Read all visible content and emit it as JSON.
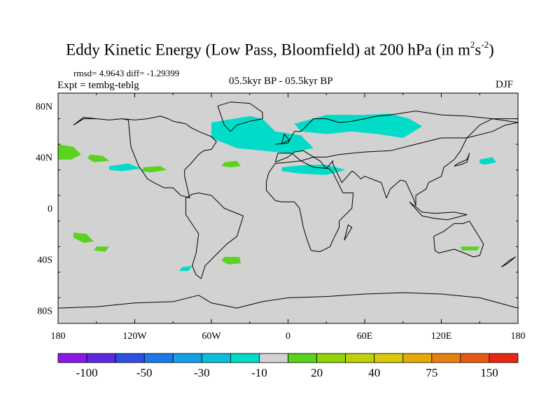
{
  "chart_data": {
    "type": "heatmap",
    "title_main": "Eddy Kinetic Energy (Low Pass, Bloomfield) at 200 hPa (in m",
    "title_sup1": "2",
    "title_mid": "s",
    "title_sup2": "-2",
    "title_end": ")",
    "stats": "rmsd= 4.9643 diff= -1.29399",
    "experiment": "Expt = tembg-teblg",
    "period": "05.5kyr BP - 05.5kyr BP",
    "season": "DJF",
    "x_ticks": [
      "180",
      "120W",
      "60W",
      "0",
      "60E",
      "120E",
      "180"
    ],
    "x_tick_values": [
      -180,
      -120,
      -60,
      0,
      60,
      120,
      180
    ],
    "y_ticks": [
      "80N",
      "40N",
      "0",
      "40S",
      "80S"
    ],
    "y_tick_values": [
      80,
      40,
      0,
      -40,
      -80
    ],
    "xlim": [
      -180,
      180
    ],
    "ylim": [
      -90,
      90
    ],
    "background_color": "#d2d2d2",
    "colorbar": {
      "colors": [
        "#8c18e6",
        "#5a28e0",
        "#2d50e1",
        "#1e78e6",
        "#14a0e6",
        "#0abedc",
        "#00dcc8",
        "#d2d2d2",
        "#5ad21e",
        "#96d20a",
        "#bed20a",
        "#dcc80a",
        "#e6aa0a",
        "#e68214",
        "#e65a14",
        "#e62814"
      ],
      "labels": [
        "-100",
        "-50",
        "-30",
        "-10",
        "20",
        "40",
        "75",
        "150"
      ],
      "label_after_box": [
        1,
        3,
        5,
        7,
        9,
        11,
        13,
        15
      ]
    },
    "anomaly_regions": [
      {
        "name": "north-atlantic-negative",
        "color": "#00dcc8",
        "lon": [
          -60,
          -30,
          -20,
          -10,
          10,
          20,
          0,
          -20,
          -40,
          -60
        ],
        "lat": [
          67,
          72,
          70,
          60,
          57,
          47,
          43,
          45,
          47,
          55
        ]
      },
      {
        "name": "eurasia-north-negative",
        "color": "#00dcc8",
        "lon": [
          5,
          30,
          60,
          80,
          95,
          105,
          90,
          70,
          50,
          30,
          10
        ],
        "lat": [
          66,
          73,
          73,
          74,
          70,
          64,
          55,
          58,
          60,
          58,
          60
        ]
      },
      {
        "name": "mediterranean-negative",
        "color": "#00dcc8",
        "lon": [
          -5,
          15,
          30,
          45,
          30,
          10,
          -5
        ],
        "lat": [
          32,
          34,
          34,
          30,
          26,
          27,
          29
        ]
      },
      {
        "name": "pacific-east-negative",
        "color": "#00dcc8",
        "lon": [
          -140,
          -125,
          -115,
          -130,
          -140
        ],
        "lat": [
          33,
          35,
          31,
          29,
          30
        ]
      },
      {
        "name": "pacific-west-negative",
        "color": "#00dcc8",
        "lon": [
          150,
          160,
          163,
          154,
          150
        ],
        "lat": [
          38,
          40,
          36,
          34,
          35
        ]
      },
      {
        "name": "south-atlantic-negative",
        "color": "#00dcc8",
        "lon": [
          -83,
          -75,
          -78,
          -85
        ],
        "lat": [
          -46,
          -45,
          -49,
          -49
        ]
      },
      {
        "name": "dateline-north-positive",
        "color": "#5ad21e",
        "lon": [
          -180,
          -168,
          -162,
          -170,
          -180
        ],
        "lat": [
          50,
          48,
          42,
          38,
          38
        ]
      },
      {
        "name": "central-pacific-positive",
        "color": "#5ad21e",
        "lon": [
          -155,
          -145,
          -140,
          -152,
          -157
        ],
        "lat": [
          42,
          41,
          37,
          36,
          39
        ]
      },
      {
        "name": "mexico-positive",
        "color": "#5ad21e",
        "lon": [
          -113,
          -100,
          -95,
          -107,
          -115
        ],
        "lat": [
          32,
          33,
          30,
          28,
          29
        ]
      },
      {
        "name": "atlantic-sub-positive",
        "color": "#5ad21e",
        "lon": [
          -50,
          -40,
          -37,
          -45,
          -52
        ],
        "lat": [
          36,
          37,
          33,
          32,
          33
        ]
      },
      {
        "name": "south-pacific-positive",
        "color": "#5ad21e",
        "lon": [
          -168,
          -158,
          -152,
          -160,
          -168
        ],
        "lat": [
          -19,
          -20,
          -26,
          -27,
          -23
        ]
      },
      {
        "name": "south-pacific-2-positive",
        "color": "#5ad21e",
        "lon": [
          -150,
          -140,
          -143,
          -152
        ],
        "lat": [
          -30,
          -30,
          -34,
          -33
        ]
      },
      {
        "name": "south-atlantic-positive",
        "color": "#5ad21e",
        "lon": [
          -50,
          -38,
          -37,
          -47,
          -52
        ],
        "lat": [
          -38,
          -38,
          -43,
          -44,
          -41
        ]
      },
      {
        "name": "australia-positive",
        "color": "#5ad21e",
        "lon": [
          135,
          150,
          148,
          136
        ],
        "lat": [
          -30,
          -30,
          -33,
          -33
        ]
      }
    ],
    "coastlines": [
      {
        "name": "north-america",
        "lon": [
          -168,
          -160,
          -150,
          -140,
          -130,
          -125,
          -123,
          -117,
          -110,
          -105,
          -97,
          -90,
          -84,
          -80,
          -77,
          -81,
          -81,
          -76,
          -70,
          -66,
          -60,
          -56,
          -60,
          -70,
          -76,
          -80,
          -90,
          -94,
          -100,
          -110,
          -120,
          -130,
          -140,
          -150,
          -160,
          -168
        ],
        "lat": [
          65,
          70,
          70,
          69,
          70,
          69,
          48,
          33,
          23,
          20,
          16,
          16,
          10,
          9,
          8,
          25,
          30,
          35,
          42,
          45,
          46,
          52,
          56,
          60,
          63,
          66,
          68,
          70,
          72,
          70,
          69,
          70,
          69,
          70,
          71,
          65
        ]
      },
      {
        "name": "greenland",
        "lon": [
          -55,
          -45,
          -30,
          -20,
          -20,
          -30,
          -40,
          -45,
          -50,
          -55
        ],
        "lat": [
          80,
          83,
          82,
          75,
          70,
          68,
          65,
          60,
          65,
          80
        ]
      },
      {
        "name": "south-america",
        "lon": [
          -80,
          -75,
          -70,
          -60,
          -50,
          -35,
          -40,
          -48,
          -55,
          -60,
          -65,
          -68,
          -72,
          -75,
          -72,
          -70,
          -72,
          -80,
          -80
        ],
        "lat": [
          8,
          11,
          12,
          10,
          0,
          -6,
          -22,
          -28,
          -35,
          -40,
          -45,
          -55,
          -52,
          -45,
          -35,
          -20,
          -17,
          -5,
          8
        ]
      },
      {
        "name": "eurasia",
        "lon": [
          -10,
          -8,
          3,
          10,
          20,
          30,
          40,
          60,
          80,
          100,
          120,
          140,
          160,
          170,
          180,
          180,
          160,
          150,
          140,
          135,
          130,
          122,
          120,
          110,
          108,
          100,
          100,
          98,
          92,
          88,
          80,
          77,
          73,
          60,
          57,
          52,
          50,
          42,
          35,
          35,
          30,
          25,
          20,
          12,
          5,
          0,
          -10
        ],
        "lat": [
          36,
          43,
          43,
          37,
          40,
          40,
          42,
          44,
          45,
          50,
          55,
          55,
          60,
          65,
          67,
          70,
          70,
          65,
          55,
          45,
          38,
          32,
          25,
          20,
          15,
          10,
          2,
          8,
          21,
          22,
          15,
          8,
          20,
          25,
          23,
          28,
          29,
          20,
          35,
          37,
          31,
          37,
          40,
          45,
          44,
          40,
          36
        ]
      },
      {
        "name": "eurasia-north-coast",
        "lon": [
          -10,
          0,
          5,
          10,
          20,
          30,
          40,
          50,
          60,
          70,
          80,
          100,
          120,
          140,
          160,
          180
        ],
        "lat": [
          50,
          51,
          60,
          60,
          70,
          70,
          67,
          68,
          70,
          72,
          73,
          76,
          73,
          72,
          70,
          67
        ]
      },
      {
        "name": "africa",
        "lon": [
          -17,
          -15,
          -10,
          0,
          10,
          20,
          32,
          35,
          43,
          51,
          50,
          40,
          40,
          35,
          33,
          25,
          18,
          15,
          12,
          9,
          5,
          -5,
          -10,
          -17,
          -17
        ],
        "lat": [
          21,
          28,
          35,
          36,
          37,
          32,
          31,
          28,
          12,
          12,
          0,
          -10,
          -15,
          -25,
          -30,
          -34,
          -33,
          -25,
          -15,
          0,
          5,
          5,
          6,
          14,
          21
        ]
      },
      {
        "name": "australia",
        "lon": [
          114,
          122,
          130,
          137,
          142,
          145,
          150,
          153,
          150,
          145,
          138,
          130,
          118,
          115,
          114
        ],
        "lat": [
          -22,
          -18,
          -12,
          -12,
          -10,
          -15,
          -23,
          -28,
          -37,
          -38,
          -35,
          -32,
          -35,
          -33,
          -22
        ]
      },
      {
        "name": "antarctica",
        "lon": [
          -180,
          -150,
          -120,
          -90,
          -70,
          -60,
          -40,
          -20,
          0,
          30,
          60,
          90,
          120,
          150,
          180
        ],
        "lat": [
          -78,
          -77,
          -74,
          -73,
          -68,
          -74,
          -78,
          -73,
          -70,
          -69,
          -67,
          -66,
          -67,
          -70,
          -78
        ]
      },
      {
        "name": "uk",
        "lon": [
          -5,
          -2,
          1,
          -3,
          -5
        ],
        "lat": [
          50,
          52,
          53,
          58,
          50
        ]
      },
      {
        "name": "japan",
        "lon": [
          130,
          135,
          140,
          142,
          140,
          133,
          130
        ],
        "lat": [
          33,
          34,
          36,
          43,
          38,
          35,
          33
        ]
      },
      {
        "name": "madagascar",
        "lon": [
          44,
          50,
          47,
          44
        ],
        "lat": [
          -25,
          -15,
          -13,
          -25
        ]
      },
      {
        "name": "new-zealand",
        "lon": [
          167,
          173,
          178,
          172,
          167
        ],
        "lat": [
          -46,
          -41,
          -38,
          -43,
          -46
        ]
      },
      {
        "name": "indonesia",
        "lon": [
          95,
          105,
          115,
          125,
          140,
          130,
          115,
          105,
          95
        ],
        "lat": [
          5,
          -6,
          -8,
          -9,
          -5,
          -3,
          -4,
          -3,
          5
        ]
      }
    ]
  }
}
